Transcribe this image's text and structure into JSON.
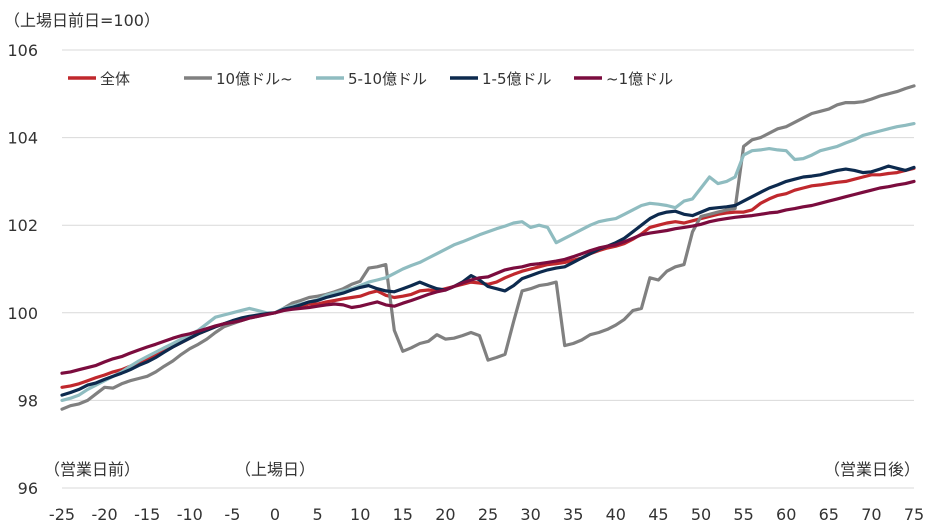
{
  "chart_data": {
    "type": "line",
    "unit_label": "（上場日前日=100）",
    "x_ticks": [
      -25,
      -20,
      -15,
      -10,
      -5,
      0,
      5,
      10,
      15,
      20,
      25,
      30,
      35,
      40,
      45,
      50,
      55,
      60,
      65,
      70,
      75
    ],
    "y_ticks": [
      96,
      98,
      100,
      102,
      104,
      106
    ],
    "xlim": [
      -25,
      75
    ],
    "ylim": [
      96,
      106
    ],
    "grid": "horizontal",
    "legend_position": "top-left",
    "annotations": [
      {
        "text": "（営業日前）",
        "x": -25
      },
      {
        "text": "（上場日）",
        "x": 0
      },
      {
        "text": "（営業日後）",
        "x": 75
      }
    ],
    "x": [
      -25,
      -24,
      -23,
      -22,
      -21,
      -20,
      -19,
      -18,
      -17,
      -16,
      -15,
      -14,
      -13,
      -12,
      -11,
      -10,
      -9,
      -8,
      -7,
      -6,
      -5,
      -4,
      -3,
      -2,
      -1,
      0,
      1,
      2,
      3,
      4,
      5,
      6,
      7,
      8,
      9,
      10,
      11,
      12,
      13,
      14,
      15,
      16,
      17,
      18,
      19,
      20,
      21,
      22,
      23,
      24,
      25,
      26,
      27,
      28,
      29,
      30,
      31,
      32,
      33,
      34,
      35,
      36,
      37,
      38,
      39,
      40,
      41,
      42,
      43,
      44,
      45,
      46,
      47,
      48,
      49,
      50,
      51,
      52,
      53,
      54,
      55,
      56,
      57,
      58,
      59,
      60,
      61,
      62,
      63,
      64,
      65,
      66,
      67,
      68,
      69,
      70,
      71,
      72,
      73,
      74,
      75
    ],
    "series": [
      {
        "name": "全体",
        "color": "#c0282d",
        "values": [
          98.3,
          98.33,
          98.38,
          98.45,
          98.52,
          98.58,
          98.65,
          98.7,
          98.78,
          98.87,
          98.95,
          99.04,
          99.12,
          99.22,
          99.32,
          99.42,
          99.52,
          99.6,
          99.68,
          99.75,
          99.8,
          99.85,
          99.9,
          99.93,
          99.97,
          100.0,
          100.08,
          100.12,
          100.15,
          100.2,
          100.2,
          100.25,
          100.28,
          100.32,
          100.35,
          100.38,
          100.45,
          100.5,
          100.4,
          100.35,
          100.38,
          100.42,
          100.5,
          100.52,
          100.5,
          100.55,
          100.6,
          100.65,
          100.7,
          100.68,
          100.65,
          100.7,
          100.8,
          100.88,
          100.95,
          101.0,
          101.05,
          101.1,
          101.12,
          101.15,
          101.2,
          101.25,
          101.35,
          101.42,
          101.48,
          101.52,
          101.58,
          101.68,
          101.8,
          101.95,
          102.0,
          102.05,
          102.08,
          102.05,
          102.1,
          102.15,
          102.2,
          102.25,
          102.28,
          102.3,
          102.3,
          102.35,
          102.5,
          102.6,
          102.68,
          102.72,
          102.8,
          102.85,
          102.9,
          102.92,
          102.95,
          102.98,
          103.0,
          103.05,
          103.1,
          103.15,
          103.15,
          103.18,
          103.2,
          103.25,
          103.3
        ]
      },
      {
        "name": "10億ドル~",
        "color": "#808080",
        "values": [
          97.8,
          97.88,
          97.92,
          98.0,
          98.15,
          98.3,
          98.28,
          98.38,
          98.45,
          98.5,
          98.55,
          98.65,
          98.78,
          98.9,
          99.05,
          99.18,
          99.28,
          99.4,
          99.55,
          99.68,
          99.75,
          99.82,
          99.88,
          99.92,
          99.98,
          100.0,
          100.1,
          100.22,
          100.28,
          100.35,
          100.38,
          100.42,
          100.48,
          100.55,
          100.65,
          100.72,
          101.02,
          101.05,
          101.1,
          99.6,
          99.12,
          99.2,
          99.3,
          99.35,
          99.5,
          99.4,
          99.42,
          99.48,
          99.55,
          99.48,
          98.92,
          98.98,
          99.05,
          99.8,
          100.5,
          100.55,
          100.62,
          100.65,
          100.7,
          99.25,
          99.3,
          99.38,
          99.5,
          99.55,
          99.62,
          99.72,
          99.85,
          100.05,
          100.1,
          100.8,
          100.75,
          100.95,
          101.05,
          101.1,
          101.85,
          102.2,
          102.25,
          102.3,
          102.35,
          102.38,
          103.8,
          103.95,
          104.0,
          104.1,
          104.2,
          104.25,
          104.35,
          104.45,
          104.55,
          104.6,
          104.65,
          104.75,
          104.8,
          104.8,
          104.82,
          104.88,
          104.95,
          105.0,
          105.05,
          105.12,
          105.18
        ]
      },
      {
        "name": "5-10億ドル",
        "color": "#8fbcc0",
        "values": [
          98.0,
          98.05,
          98.12,
          98.25,
          98.35,
          98.45,
          98.55,
          98.65,
          98.78,
          98.9,
          99.0,
          99.1,
          99.2,
          99.3,
          99.4,
          99.5,
          99.6,
          99.75,
          99.9,
          99.95,
          100.0,
          100.05,
          100.1,
          100.05,
          100.0,
          100.0,
          100.1,
          100.15,
          100.2,
          100.25,
          100.3,
          100.4,
          100.45,
          100.5,
          100.55,
          100.62,
          100.7,
          100.75,
          100.8,
          100.9,
          101.0,
          101.08,
          101.15,
          101.25,
          101.35,
          101.45,
          101.55,
          101.62,
          101.7,
          101.78,
          101.85,
          101.92,
          101.98,
          102.05,
          102.08,
          101.95,
          102.0,
          101.95,
          101.6,
          101.7,
          101.8,
          101.9,
          102.0,
          102.08,
          102.12,
          102.15,
          102.25,
          102.35,
          102.45,
          102.5,
          102.48,
          102.45,
          102.4,
          102.55,
          102.6,
          102.85,
          103.1,
          102.95,
          103.0,
          103.1,
          103.6,
          103.7,
          103.72,
          103.75,
          103.72,
          103.7,
          103.5,
          103.52,
          103.6,
          103.7,
          103.75,
          103.8,
          103.88,
          103.95,
          104.05,
          104.1,
          104.15,
          104.2,
          104.25,
          104.28,
          104.32
        ]
      },
      {
        "name": "1-5億ドル",
        "color": "#0d2a4e",
        "values": [
          98.12,
          98.18,
          98.25,
          98.35,
          98.4,
          98.48,
          98.55,
          98.62,
          98.7,
          98.8,
          98.88,
          98.98,
          99.1,
          99.22,
          99.32,
          99.42,
          99.52,
          99.6,
          99.68,
          99.75,
          99.82,
          99.88,
          99.92,
          99.95,
          99.98,
          100.0,
          100.08,
          100.12,
          100.18,
          100.25,
          100.28,
          100.35,
          100.4,
          100.45,
          100.52,
          100.58,
          100.62,
          100.55,
          100.5,
          100.48,
          100.55,
          100.62,
          100.7,
          100.62,
          100.55,
          100.52,
          100.6,
          100.7,
          100.85,
          100.75,
          100.6,
          100.55,
          100.5,
          100.62,
          100.78,
          100.85,
          100.92,
          100.98,
          101.02,
          101.05,
          101.15,
          101.25,
          101.35,
          101.45,
          101.52,
          101.6,
          101.7,
          101.85,
          102.0,
          102.15,
          102.25,
          102.3,
          102.32,
          102.25,
          102.22,
          102.3,
          102.38,
          102.4,
          102.42,
          102.45,
          102.55,
          102.65,
          102.75,
          102.85,
          102.92,
          103.0,
          103.05,
          103.1,
          103.12,
          103.15,
          103.2,
          103.25,
          103.28,
          103.25,
          103.2,
          103.22,
          103.28,
          103.35,
          103.3,
          103.25,
          103.32
        ]
      },
      {
        "name": "~1億ドル",
        "color": "#7b0c3e",
        "values": [
          98.62,
          98.65,
          98.7,
          98.75,
          98.8,
          98.88,
          98.95,
          99.0,
          99.08,
          99.15,
          99.22,
          99.28,
          99.35,
          99.42,
          99.48,
          99.52,
          99.58,
          99.64,
          99.7,
          99.75,
          99.78,
          99.82,
          99.88,
          99.92,
          99.96,
          100.0,
          100.05,
          100.08,
          100.1,
          100.12,
          100.15,
          100.18,
          100.2,
          100.18,
          100.12,
          100.15,
          100.2,
          100.25,
          100.18,
          100.15,
          100.22,
          100.28,
          100.35,
          100.42,
          100.48,
          100.52,
          100.6,
          100.68,
          100.75,
          100.8,
          100.82,
          100.9,
          100.98,
          101.02,
          101.05,
          101.1,
          101.12,
          101.15,
          101.18,
          101.22,
          101.28,
          101.35,
          101.42,
          101.48,
          101.52,
          101.55,
          101.62,
          101.7,
          101.78,
          101.82,
          101.85,
          101.88,
          101.92,
          101.95,
          101.98,
          102.02,
          102.08,
          102.12,
          102.15,
          102.18,
          102.2,
          102.22,
          102.25,
          102.28,
          102.3,
          102.35,
          102.38,
          102.42,
          102.45,
          102.5,
          102.55,
          102.6,
          102.65,
          102.7,
          102.75,
          102.8,
          102.85,
          102.88,
          102.92,
          102.95,
          103.0
        ]
      }
    ]
  }
}
